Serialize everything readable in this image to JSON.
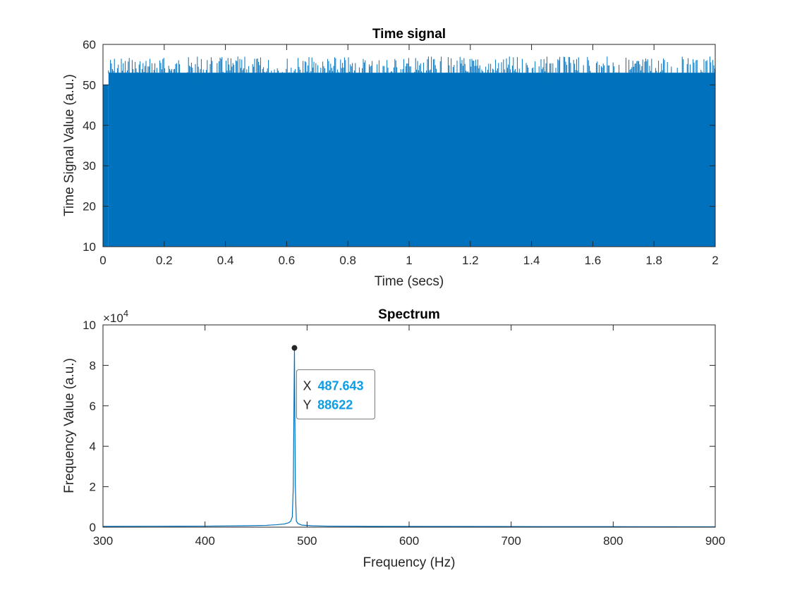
{
  "figure": {
    "background": "#ffffff",
    "line_color": "#0072bd",
    "axis_color": "#262626"
  },
  "chart_data": [
    {
      "type": "line",
      "title": "Time signal",
      "xlabel": "Time (secs)",
      "ylabel": "Time Signal Value (a.u.)",
      "xlim": [
        0,
        2
      ],
      "ylim": [
        10,
        60
      ],
      "xticks": [
        0,
        0.2,
        0.4,
        0.6,
        0.8,
        1,
        1.2,
        1.4,
        1.6,
        1.8,
        2
      ],
      "xticklabels": [
        "0",
        "0.2",
        "0.4",
        "0.6",
        "0.8",
        "1",
        "1.2",
        "1.4",
        "1.6",
        "1.8",
        "2"
      ],
      "yticks": [
        10,
        20,
        30,
        40,
        50,
        60
      ],
      "yticklabels": [
        "10",
        "20",
        "30",
        "40",
        "50",
        "60"
      ],
      "grid": false,
      "series": [
        {
          "color": "#0072bd",
          "description_values": {
            "x_range": [
              0,
              2
            ],
            "min": 10,
            "max_start": 50,
            "max_typical": 57,
            "envelope_step_x": 0.02
          }
        }
      ]
    },
    {
      "type": "line",
      "title": "Spectrum",
      "xlabel": "Frequency (Hz)",
      "ylabel": "Frequency Value (a.u.)",
      "xlim": [
        300,
        900
      ],
      "ylim": [
        0,
        100000
      ],
      "y_exponent_label": "×10",
      "y_exponent_power": "4",
      "xticks": [
        300,
        400,
        500,
        600,
        700,
        800,
        900
      ],
      "xticklabels": [
        "300",
        "400",
        "500",
        "600",
        "700",
        "800",
        "900"
      ],
      "yticks": [
        0,
        20000,
        40000,
        60000,
        80000,
        100000
      ],
      "yticklabels": [
        "0",
        "2",
        "4",
        "6",
        "8",
        "10"
      ],
      "grid": false,
      "series": [
        {
          "color": "#0072bd",
          "x": [
            300,
            350,
            400,
            440,
            460,
            470,
            478,
            482,
            484,
            485.5,
            486.5,
            487.643,
            488.5,
            489.5,
            491,
            495,
            505,
            520,
            560,
            620,
            700,
            800,
            900
          ],
          "y": [
            400,
            450,
            500,
            700,
            900,
            1200,
            1600,
            2200,
            3000,
            5000,
            20000,
            88622,
            20000,
            3000,
            1800,
            1000,
            700,
            500,
            400,
            350,
            300,
            250,
            200
          ]
        }
      ],
      "datatip": {
        "x_label": "X",
        "x_value": "487.643",
        "y_label": "Y",
        "y_value": "88622",
        "x": 487.643,
        "y": 88622
      }
    }
  ]
}
